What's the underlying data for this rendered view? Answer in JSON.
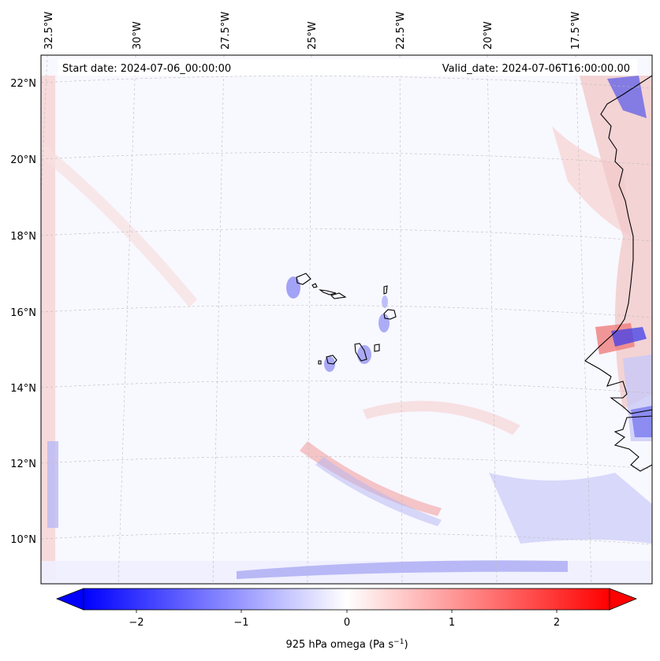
{
  "header": {
    "start_date": "Start date: 2024-07-06_00:00:00",
    "valid_date": "Valid_date: 2024-07-06T16:00:00.00"
  },
  "map": {
    "top_lon_labels": [
      "32.5°W",
      "30°W",
      "27.5°W",
      "25°W",
      "22.5°W",
      "20°W",
      "17.5°W"
    ],
    "left_lat_labels": [
      "22°N",
      "20°N",
      "18°N",
      "16°N",
      "14°N",
      "12°N",
      "10°N"
    ],
    "field": "925 hPa omega"
  },
  "colorbar": {
    "label_main": "925 hPa omega (Pa s",
    "label_sup": "−1",
    "label_close": ")",
    "ticks": [
      "−2",
      "−1",
      "0",
      "1",
      "2"
    ],
    "min": -2.75,
    "max": 2.75,
    "low_color": "#0000ff",
    "mid_color": "#ffffff",
    "high_color": "#ff0000"
  }
}
